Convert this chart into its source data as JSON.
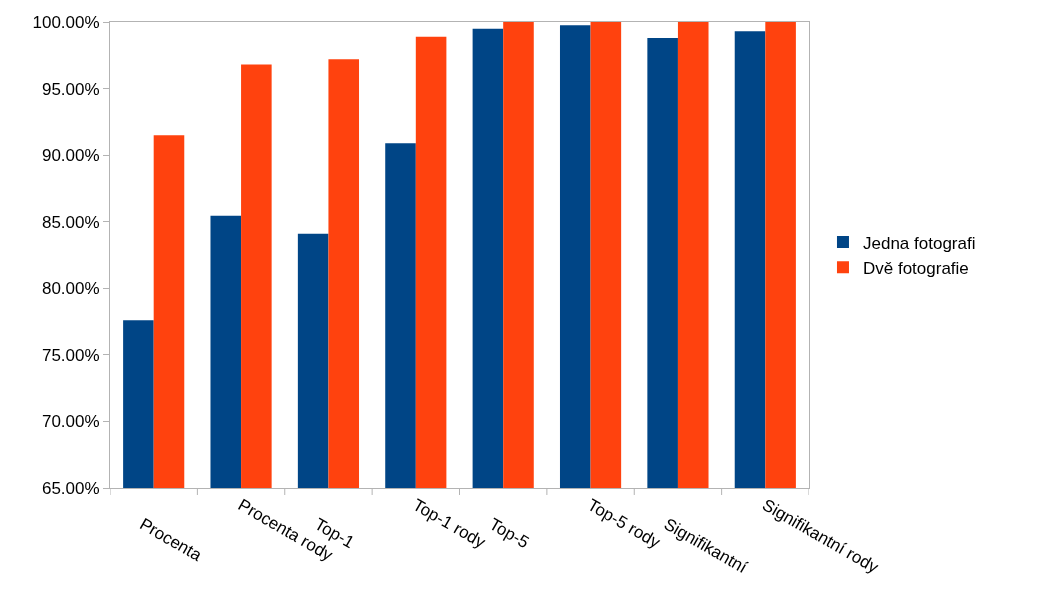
{
  "chart_data": {
    "type": "bar",
    "categories": [
      "Procenta",
      "Procenta rody",
      "Top-1",
      "Top-1 rody",
      "Top-5",
      "Top-5 rody",
      "Signifikantní",
      "Signifikantní rody"
    ],
    "series": [
      {
        "name": "Jedna fotografi",
        "color": "#004586",
        "values": [
          77.6,
          85.45,
          84.1,
          90.9,
          99.5,
          99.75,
          98.8,
          99.3
        ]
      },
      {
        "name": "Dvě fotografie",
        "color": "#ff420e",
        "values": [
          91.5,
          96.8,
          97.2,
          98.9,
          100,
          100,
          100,
          100
        ]
      }
    ],
    "ylim": [
      65,
      100
    ],
    "yticks": [
      {
        "value": 65,
        "label": "65.00%"
      },
      {
        "value": 70,
        "label": "70.00%"
      },
      {
        "value": 75,
        "label": "75.00%"
      },
      {
        "value": 80,
        "label": "80.00%"
      },
      {
        "value": 85,
        "label": "85.00%"
      },
      {
        "value": 90,
        "label": "90.00%"
      },
      {
        "value": 95,
        "label": "95.00%"
      },
      {
        "value": 100,
        "label": "100.00%"
      }
    ],
    "grid": false,
    "legend": "right"
  }
}
